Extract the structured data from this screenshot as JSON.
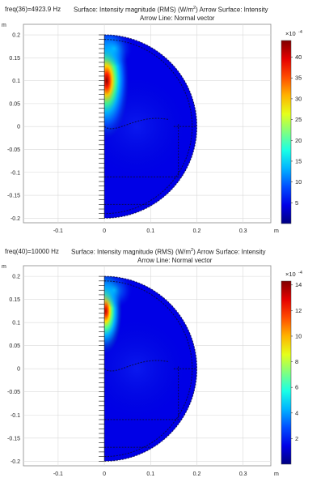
{
  "chart_data": [
    {
      "type": "heatmap",
      "freq_label": "freq(36)=4923.9 Hz",
      "title_line1": "Surface: Intensity magnitude (RMS) (W/m",
      "title_sup": "2",
      "title_line1_end": ")  Arrow Surface: Intensity",
      "title_line2": "Arrow Line: Normal vector",
      "xunit": "m",
      "yunit": "m",
      "xlim": [
        -0.175,
        0.36
      ],
      "ylim": [
        -0.21,
        0.223
      ],
      "xticks": [
        -0.1,
        0,
        0.1,
        0.2,
        0.3
      ],
      "xtick_labels": [
        "-0.1",
        "0",
        "0.1",
        "0.2",
        "0.3"
      ],
      "yticks": [
        0.2,
        0.15,
        0.1,
        0.05,
        0,
        -0.05,
        -0.1,
        -0.15,
        -0.2
      ],
      "ytick_labels": [
        "0.2",
        "0.15",
        "0.1",
        "0.05",
        "0",
        "-0.05",
        "-0.1",
        "-0.15",
        "-0.2"
      ],
      "geometry": {
        "shape": "half-disk",
        "center": [
          0,
          0
        ],
        "radius": 0.2
      },
      "peak_location": [
        0.005,
        0.1
      ],
      "colorbar": {
        "multiplier": "×10",
        "multiplier_exp": "-4",
        "min": 0,
        "max": 44,
        "ticks": [
          5,
          10,
          15,
          20,
          25,
          30,
          35,
          40
        ],
        "tick_labels": [
          "5",
          "10",
          "15",
          "20",
          "25",
          "30",
          "35",
          "40"
        ],
        "colormap": "jet"
      },
      "grid": true
    },
    {
      "type": "heatmap",
      "freq_label": "freq(40)=10000 Hz",
      "title_line1": "Surface: Intensity magnitude (RMS) (W/m",
      "title_sup": "2",
      "title_line1_end": ")  Arrow Surface: Intensity",
      "title_line2": "Arrow Line: Normal vector",
      "xunit": "m",
      "yunit": "m",
      "xlim": [
        -0.175,
        0.36
      ],
      "ylim": [
        -0.21,
        0.223
      ],
      "xticks": [
        -0.1,
        0,
        0.1,
        0.2,
        0.3
      ],
      "xtick_labels": [
        "-0.1",
        "0",
        "0.1",
        "0.2",
        "0.3"
      ],
      "yticks": [
        0.2,
        0.15,
        0.1,
        0.05,
        0,
        -0.05,
        -0.1,
        -0.15,
        -0.2
      ],
      "ytick_labels": [
        "0.2",
        "0.15",
        "0.1",
        "0.05",
        "0",
        "-0.05",
        "-0.1",
        "-0.15",
        "-0.2"
      ],
      "geometry": {
        "shape": "half-disk",
        "center": [
          0,
          0
        ],
        "radius": 0.2
      },
      "peak_location": [
        0.003,
        0.125
      ],
      "colorbar": {
        "multiplier": "×10",
        "multiplier_exp": "-4",
        "min": 0,
        "max": 14.3,
        "ticks": [
          2,
          4,
          6,
          8,
          10,
          12,
          14
        ],
        "tick_labels": [
          "2",
          "4",
          "6",
          "8",
          "10",
          "12",
          "14"
        ],
        "colormap": "jet"
      },
      "grid": true
    }
  ]
}
